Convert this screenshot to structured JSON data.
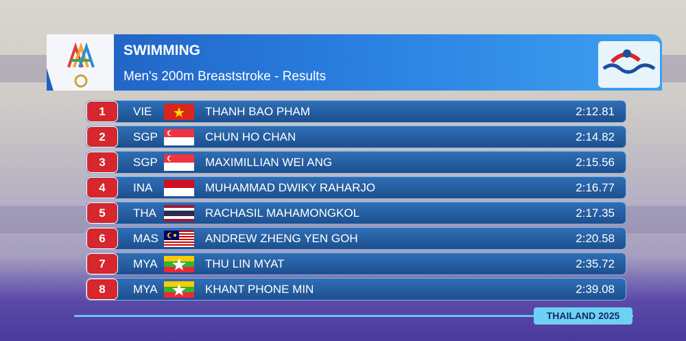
{
  "header": {
    "title": "SWIMMING",
    "subtitle": "Men's 200m Breaststroke - Results"
  },
  "table": {
    "rows": [
      {
        "rank": 1,
        "country": "VIE",
        "name": "THANH BAO PHAM",
        "time": "2:12.81"
      },
      {
        "rank": 2,
        "country": "SGP",
        "name": "CHUN HO CHAN",
        "time": "2:14.82"
      },
      {
        "rank": 3,
        "country": "SGP",
        "name": "MAXIMILLIAN WEI ANG",
        "time": "2:15.56"
      },
      {
        "rank": 4,
        "country": "INA",
        "name": "MUHAMMAD DWIKY RAHARJO",
        "time": "2:16.77"
      },
      {
        "rank": 5,
        "country": "THA",
        "name": "RACHASIL MAHAMONGKOL",
        "time": "2:17.35"
      },
      {
        "rank": 6,
        "country": "MAS",
        "name": "ANDREW ZHENG YEN GOH",
        "time": "2:20.58"
      },
      {
        "rank": 7,
        "country": "MYA",
        "name": "THU LIN MYAT",
        "time": "2:35.72"
      },
      {
        "rank": 8,
        "country": "MYA",
        "name": "KHANT PHONE MIN",
        "time": "2:39.08"
      }
    ]
  },
  "footer": {
    "label": "THAILAND 2025"
  }
}
